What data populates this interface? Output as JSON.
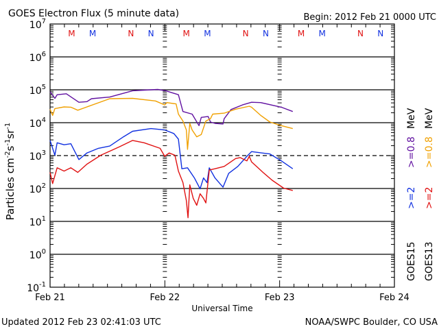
{
  "header": {
    "title": "GOES Electron Flux (5 minute data)",
    "begin": "Begin: 2012 Feb 21 0000 UTC"
  },
  "footer": {
    "updated": "Updated 2012 Feb 23 02:41:03 UTC",
    "credit": "NOAA/SWPC Boulder, CO USA"
  },
  "legend": {
    "goes15": {
      "sat": "GOES15",
      "ch1": ">=2",
      "ch2": ">=0.8",
      "unit": "MeV"
    },
    "goes13": {
      "sat": "GOES13",
      "ch1": ">=2",
      "ch2": ">=0.8",
      "unit": "MeV"
    }
  },
  "colors": {
    "g15_2": "#1030e0",
    "g13_2": "#e01010",
    "g15_08": "#6010a0",
    "g13_08": "#f0a000",
    "M": "#e01010",
    "N": "#1030e0"
  },
  "chart_data": {
    "type": "line",
    "title": "GOES Electron Flux (5 minute data)",
    "xlabel": "Universal Time",
    "ylabel": "Particles cm-2s-1sr-1",
    "ylabel_parts": [
      "Particles cm",
      "-2",
      "s",
      "-1",
      "sr",
      "-1"
    ],
    "x_unit": "hours since 2012 Feb 21 0000 UTC",
    "xlim": [
      0,
      72
    ],
    "ylim_log10": [
      -1,
      7
    ],
    "yscale": "log",
    "x_ticks": [
      {
        "h": 0,
        "label": "Feb 21"
      },
      {
        "h": 24,
        "label": "Feb 22"
      },
      {
        "h": 48,
        "label": "Feb 23"
      },
      {
        "h": 72,
        "label": "Feb 24"
      }
    ],
    "y_ticks": [
      {
        "exp": 7,
        "base": "10",
        "sup": "7"
      },
      {
        "exp": 6,
        "base": "10",
        "sup": "6"
      },
      {
        "exp": 5,
        "base": "10",
        "sup": "5"
      },
      {
        "exp": 4,
        "base": "10",
        "sup": "4"
      },
      {
        "exp": 3,
        "base": "10",
        "sup": "3"
      },
      {
        "exp": 2,
        "base": "10",
        "sup": "2"
      },
      {
        "exp": 1,
        "base": "10",
        "sup": "1"
      },
      {
        "exp": 0,
        "base": "10",
        "sup": "0"
      },
      {
        "exp": -1,
        "base": "10",
        "sup": "-1"
      }
    ],
    "threshold_dashed_log10": 3,
    "markers": [
      {
        "h": 4.5,
        "label": "M",
        "color": "#e01010"
      },
      {
        "h": 8.9,
        "label": "M",
        "color": "#1030e0"
      },
      {
        "h": 16.9,
        "label": "N",
        "color": "#e01010"
      },
      {
        "h": 21.1,
        "label": "N",
        "color": "#1030e0"
      },
      {
        "h": 28.5,
        "label": "M",
        "color": "#e01010"
      },
      {
        "h": 32.9,
        "label": "M",
        "color": "#1030e0"
      },
      {
        "h": 40.9,
        "label": "N",
        "color": "#e01010"
      },
      {
        "h": 45.1,
        "label": "N",
        "color": "#1030e0"
      },
      {
        "h": 52.5,
        "label": "M",
        "color": "#e01010"
      },
      {
        "h": 56.9,
        "label": "M",
        "color": "#1030e0"
      },
      {
        "h": 64.9,
        "label": "N",
        "color": "#e01010"
      },
      {
        "h": 69.1,
        "label": "N",
        "color": "#1030e0"
      }
    ],
    "series": [
      {
        "name": "GOES15 >=0.8 MeV",
        "color": "#6010a0",
        "points_h_log10": [
          [
            0,
            4.94
          ],
          [
            1.0,
            4.74
          ],
          [
            1.48,
            4.85
          ],
          [
            3.4,
            4.88
          ],
          [
            6.02,
            4.62
          ],
          [
            7.7,
            4.64
          ],
          [
            8.66,
            4.73
          ],
          [
            12.48,
            4.78
          ],
          [
            17.26,
            4.97
          ],
          [
            19.66,
            4.99
          ],
          [
            22.52,
            5.01
          ],
          [
            24.2,
            4.97
          ],
          [
            26.83,
            4.85
          ],
          [
            27.78,
            4.34
          ],
          [
            29.7,
            4.26
          ],
          [
            31.14,
            3.91
          ],
          [
            31.61,
            4.16
          ],
          [
            33.05,
            4.19
          ],
          [
            33.53,
            4.02
          ],
          [
            34.48,
            3.98
          ],
          [
            36.16,
            3.96
          ],
          [
            36.4,
            4.12
          ],
          [
            37.83,
            4.4
          ],
          [
            40.22,
            4.54
          ],
          [
            42.13,
            4.62
          ],
          [
            44.04,
            4.61
          ],
          [
            48.35,
            4.47
          ],
          [
            50.74,
            4.34
          ]
        ]
      },
      {
        "name": "GOES13 >=0.8 MeV",
        "color": "#f0a000",
        "points_h_log10": [
          [
            0,
            4.41
          ],
          [
            0.53,
            4.22
          ],
          [
            1.0,
            4.43
          ],
          [
            2.92,
            4.48
          ],
          [
            4.35,
            4.47
          ],
          [
            5.79,
            4.38
          ],
          [
            7.7,
            4.48
          ],
          [
            12.48,
            4.73
          ],
          [
            17.26,
            4.74
          ],
          [
            22.05,
            4.66
          ],
          [
            23.96,
            4.54
          ],
          [
            24.43,
            4.61
          ],
          [
            26.35,
            4.57
          ],
          [
            26.83,
            4.26
          ],
          [
            27.78,
            4.05
          ],
          [
            28.5,
            3.78
          ],
          [
            28.74,
            3.19
          ],
          [
            29.22,
            3.98
          ],
          [
            29.7,
            3.78
          ],
          [
            30.66,
            3.57
          ],
          [
            31.61,
            3.64
          ],
          [
            32.57,
            4.05
          ],
          [
            33.53,
            4.12
          ],
          [
            34.0,
            4.26
          ],
          [
            36.4,
            4.29
          ],
          [
            38.79,
            4.41
          ],
          [
            41.65,
            4.5
          ],
          [
            42.13,
            4.47
          ],
          [
            44.04,
            4.22
          ],
          [
            45.96,
            4.02
          ],
          [
            48.35,
            3.91
          ],
          [
            50.74,
            3.82
          ]
        ]
      },
      {
        "name": "GOES15 >=2 MeV",
        "color": "#1030e0",
        "points_h_log10": [
          [
            0,
            3.46
          ],
          [
            1.0,
            3.01
          ],
          [
            1.48,
            3.39
          ],
          [
            2.92,
            3.33
          ],
          [
            4.35,
            3.36
          ],
          [
            6.02,
            2.88
          ],
          [
            7.7,
            3.08
          ],
          [
            10.1,
            3.22
          ],
          [
            12.48,
            3.29
          ],
          [
            15.35,
            3.57
          ],
          [
            17.26,
            3.74
          ],
          [
            21.1,
            3.82
          ],
          [
            23.96,
            3.78
          ],
          [
            25.87,
            3.67
          ],
          [
            26.83,
            3.5
          ],
          [
            27.55,
            2.6
          ],
          [
            28.74,
            2.63
          ],
          [
            30.18,
            2.32
          ],
          [
            31.37,
            1.99
          ],
          [
            32.09,
            2.32
          ],
          [
            32.81,
            2.18
          ],
          [
            33.29,
            2.63
          ],
          [
            34.48,
            2.32
          ],
          [
            36.16,
            2.04
          ],
          [
            37.35,
            2.46
          ],
          [
            39.26,
            2.67
          ],
          [
            41.17,
            2.98
          ],
          [
            42.13,
            3.12
          ],
          [
            45.96,
            3.05
          ],
          [
            48.35,
            2.84
          ],
          [
            50.74,
            2.6
          ]
        ]
      },
      {
        "name": "GOES13 >=2 MeV",
        "color": "#e01010",
        "points_h_log10": [
          [
            0,
            2.49
          ],
          [
            0.53,
            2.15
          ],
          [
            1.48,
            2.63
          ],
          [
            2.92,
            2.53
          ],
          [
            4.35,
            2.63
          ],
          [
            5.79,
            2.49
          ],
          [
            7.7,
            2.74
          ],
          [
            10.6,
            3.01
          ],
          [
            14.4,
            3.26
          ],
          [
            17.26,
            3.46
          ],
          [
            19.66,
            3.39
          ],
          [
            23.0,
            3.22
          ],
          [
            23.96,
            2.98
          ],
          [
            24.9,
            3.08
          ],
          [
            26.1,
            3.01
          ],
          [
            26.83,
            2.53
          ],
          [
            27.78,
            2.18
          ],
          [
            28.5,
            1.63
          ],
          [
            28.84,
            1.11
          ],
          [
            29.22,
            2.11
          ],
          [
            29.94,
            1.7
          ],
          [
            30.66,
            1.49
          ],
          [
            31.37,
            1.84
          ],
          [
            32.09,
            1.7
          ],
          [
            32.57,
            1.56
          ],
          [
            33.29,
            2.56
          ],
          [
            34.48,
            2.6
          ],
          [
            36.4,
            2.67
          ],
          [
            38.79,
            2.91
          ],
          [
            39.74,
            2.94
          ],
          [
            41.17,
            2.84
          ],
          [
            41.65,
            2.98
          ],
          [
            42.13,
            2.81
          ],
          [
            44.52,
            2.49
          ],
          [
            46.44,
            2.25
          ],
          [
            48.83,
            2.01
          ],
          [
            50.74,
            1.94
          ]
        ]
      }
    ]
  }
}
